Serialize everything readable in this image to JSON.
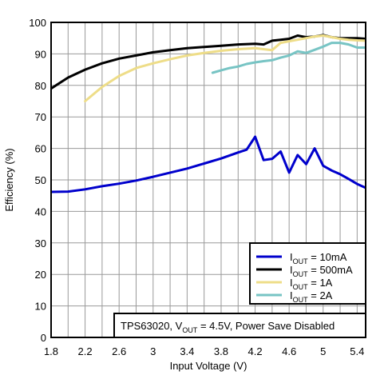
{
  "chart_data": {
    "type": "line",
    "xlabel": "Input Voltage (V)",
    "ylabel": "Efficiency (%)",
    "xlim": [
      1.8,
      5.5
    ],
    "ylim": [
      0,
      100
    ],
    "x_ticks": [
      "1.8",
      "2.2",
      "2.6",
      "3",
      "3.4",
      "3.8",
      "4.2",
      "4.6",
      "5",
      "5.4"
    ],
    "y_ticks": [
      "0",
      "10",
      "20",
      "30",
      "40",
      "50",
      "60",
      "70",
      "80",
      "90",
      "100"
    ],
    "grid": true,
    "legend_position": "bottom-right",
    "annotation": {
      "part": "TPS63020, V",
      "sub": "OUT",
      "rest": " = 4.5V, Power Save Disabled"
    },
    "series": [
      {
        "label_main": "I",
        "label_sub": "OUT",
        "label_rest": " = 10mA",
        "color": "#0000cc",
        "x": [
          1.8,
          2.0,
          2.2,
          2.4,
          2.6,
          2.8,
          3.0,
          3.2,
          3.4,
          3.6,
          3.8,
          4.0,
          4.1,
          4.2,
          4.3,
          4.4,
          4.5,
          4.6,
          4.7,
          4.8,
          4.9,
          5.0,
          5.1,
          5.2,
          5.3,
          5.4,
          5.5
        ],
        "y": [
          46.2,
          46.3,
          47.0,
          48.0,
          48.8,
          49.8,
          51.0,
          52.3,
          53.6,
          55.2,
          56.8,
          58.7,
          59.6,
          63.7,
          56.3,
          56.7,
          59.0,
          52.3,
          57.9,
          55.0,
          60.0,
          54.5,
          53.0,
          51.8,
          50.3,
          48.7,
          47.5
        ]
      },
      {
        "label_main": "I",
        "label_sub": "OUT",
        "label_rest": " = 500mA",
        "color": "#000000",
        "x": [
          1.8,
          2.0,
          2.2,
          2.4,
          2.6,
          2.8,
          3.0,
          3.2,
          3.4,
          3.6,
          3.8,
          4.0,
          4.2,
          4.3,
          4.4,
          4.5,
          4.6,
          4.7,
          4.8,
          4.9,
          5.0,
          5.1,
          5.2,
          5.3,
          5.4,
          5.5
        ],
        "y": [
          79.0,
          82.5,
          85.0,
          87.0,
          88.5,
          89.5,
          90.5,
          91.2,
          91.8,
          92.2,
          92.6,
          93.0,
          93.2,
          93.0,
          94.2,
          94.5,
          94.8,
          95.8,
          95.3,
          95.5,
          96.0,
          95.3,
          95.0,
          95.0,
          95.0,
          94.8
        ]
      },
      {
        "label_main": "I",
        "label_sub": "OUT",
        "label_rest": " = 1A",
        "color": "#eedd88",
        "x": [
          2.2,
          2.4,
          2.6,
          2.8,
          3.0,
          3.2,
          3.4,
          3.6,
          3.8,
          4.0,
          4.2,
          4.3,
          4.4,
          4.5,
          4.6,
          4.7,
          4.8,
          4.9,
          5.0,
          5.1,
          5.2,
          5.3,
          5.4,
          5.5
        ],
        "y": [
          75.0,
          79.5,
          83.0,
          85.5,
          87.0,
          88.3,
          89.5,
          90.3,
          91.0,
          91.5,
          91.8,
          91.5,
          91.2,
          93.5,
          94.0,
          94.5,
          95.0,
          95.5,
          95.8,
          95.3,
          94.8,
          94.5,
          94.3,
          94.2
        ]
      },
      {
        "label_main": "I",
        "label_sub": "OUT",
        "label_rest": " = 2A",
        "color": "#77c4c4",
        "x": [
          3.7,
          3.8,
          3.9,
          4.0,
          4.1,
          4.2,
          4.3,
          4.4,
          4.5,
          4.6,
          4.7,
          4.8,
          4.9,
          5.0,
          5.1,
          5.2,
          5.3,
          5.4,
          5.5
        ],
        "y": [
          84.0,
          84.8,
          85.5,
          86.0,
          86.8,
          87.3,
          87.7,
          88.0,
          88.8,
          89.5,
          90.8,
          90.3,
          91.3,
          92.3,
          93.5,
          93.5,
          93.0,
          92.0,
          92.0
        ]
      }
    ]
  }
}
